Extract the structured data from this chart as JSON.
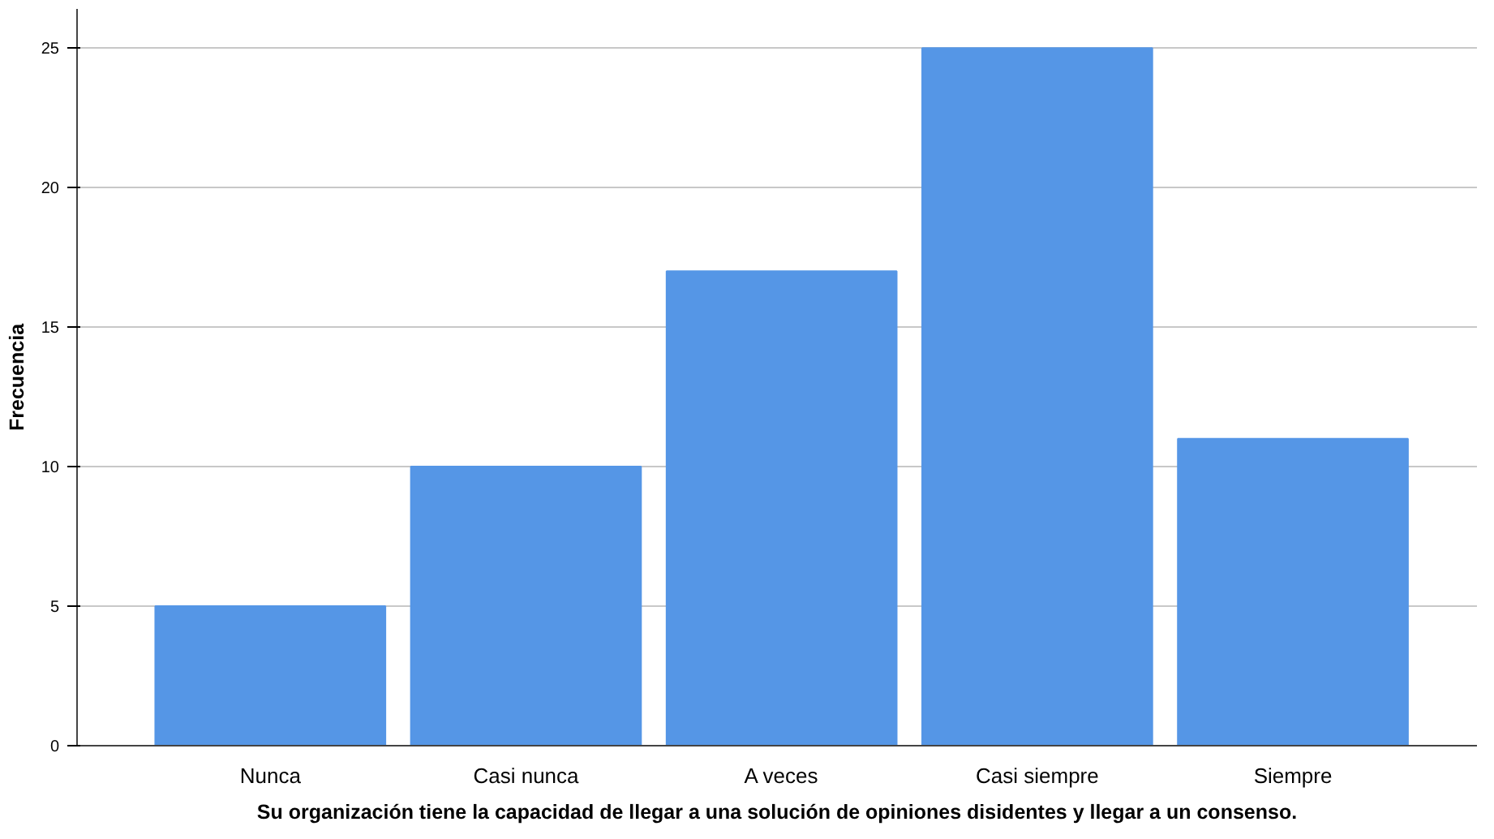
{
  "chart_data": {
    "type": "bar",
    "xlabel": "Su organización tiene la capacidad de llegar a una solución de opiniones disidentes y llegar a un consenso.",
    "ylabel": "Frecuencia",
    "categories": [
      "Nunca",
      "Casi nunca",
      "A veces",
      "Casi siempre",
      "Siempre"
    ],
    "values": [
      5,
      10,
      17,
      25,
      11
    ],
    "color": "#5596e6",
    "ylim": [
      0,
      26.4
    ],
    "yticks": [
      0,
      5,
      10,
      15,
      20,
      25
    ],
    "grid": "y"
  }
}
